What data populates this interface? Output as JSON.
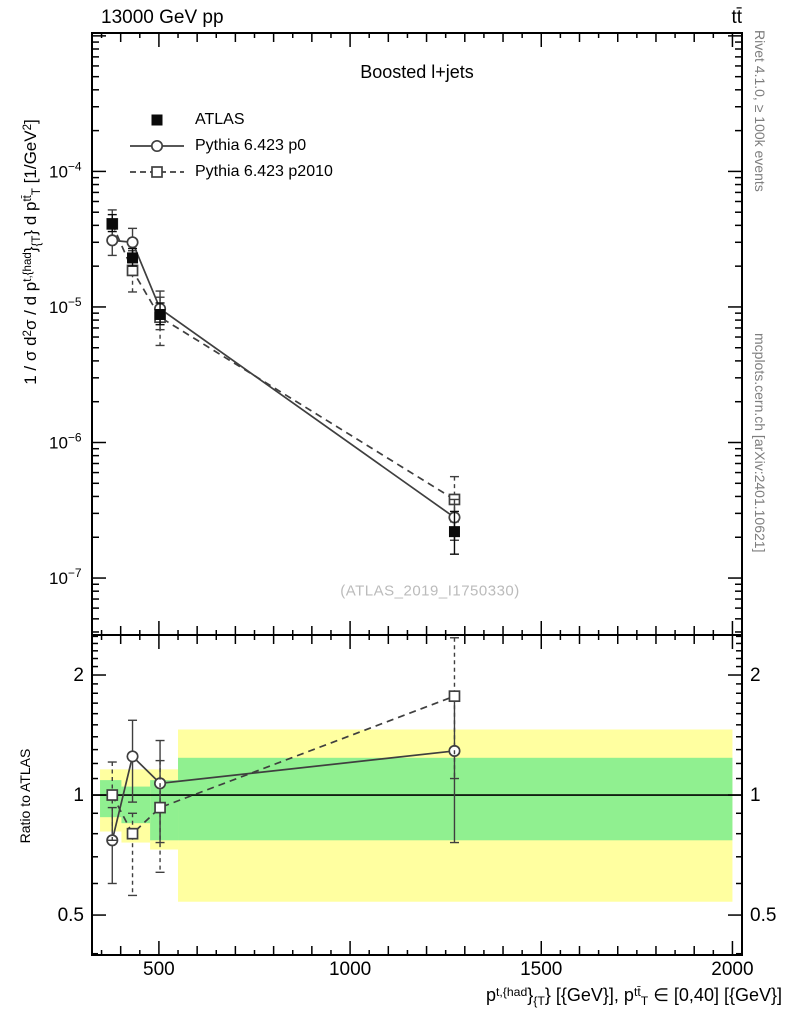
{
  "header": {
    "left": "13000 GeV pp",
    "right": "tt̄"
  },
  "plot": {
    "title": "Boosted l+jets",
    "watermark": "(ATLAS_2019_I1750330)"
  },
  "side_notes": {
    "top": "Rivet 4.1.0, ≥ 100k events",
    "bottom": "mcplots.cern.ch [arXiv:2401.10621]"
  },
  "legend": [
    {
      "label": "ATLAS",
      "marker": "filled-square"
    },
    {
      "label": "Pythia 6.423 p0",
      "marker": "open-circle",
      "line": "solid"
    },
    {
      "label": "Pythia 6.423 p2010",
      "marker": "open-square",
      "line": "dashed"
    }
  ],
  "axes": {
    "ratio_label": "Ratio to ATLAS",
    "x_ticks": [
      {
        "v": 500,
        "label": "500"
      },
      {
        "v": 1000,
        "label": "1000"
      },
      {
        "v": 1500,
        "label": "1500"
      },
      {
        "v": 2000,
        "label": "2000"
      }
    ],
    "y_ticks": [
      {
        "v": 0.0001,
        "base": "10",
        "exp": "−4"
      },
      {
        "v": 1e-05,
        "base": "10",
        "exp": "−5"
      },
      {
        "v": 1e-06,
        "base": "10",
        "exp": "−6"
      },
      {
        "v": 1e-07,
        "base": "10",
        "exp": "−7"
      }
    ],
    "ratio_ticks": [
      {
        "v": 2,
        "label": "2"
      },
      {
        "v": 1,
        "label": "1"
      },
      {
        "v": 0.5,
        "label": "0.5"
      }
    ],
    "y_main_parts": [
      {
        "t": "1 / σ d"
      },
      {
        "t": "2",
        "sup": true
      },
      {
        "t": "σ / d p"
      },
      {
        "t": "t,{had",
        "sup": true
      },
      {
        "t": "}"
      },
      {
        "t": "{T",
        "sub": true
      },
      {
        "t": "} d p"
      },
      {
        "t": "tt̄",
        "sup": true
      },
      {
        "t": "T",
        "sub": true
      },
      {
        "t": " [1/GeV"
      },
      {
        "t": "2",
        "sup": true
      },
      {
        "t": "]"
      }
    ],
    "x_label_parts": [
      {
        "t": "p"
      },
      {
        "t": "t,{had",
        "sup": true
      },
      {
        "t": "}"
      },
      {
        "t": "{T",
        "sub": true
      },
      {
        "t": "} [{GeV}], p"
      },
      {
        "t": "tt̄",
        "sup": true
      },
      {
        "t": "T",
        "sub": true
      },
      {
        "t": " ∈ [0,40] [{GeV}]"
      }
    ]
  },
  "colors": {
    "atlas": "#0a0a0a",
    "mc_line": "#3f3f3f",
    "band_yellow": "#ffffa0",
    "band_green": "#90f090",
    "watermark": "#bbbbbb",
    "side_note": "#7d7d7d",
    "frame": "#000000"
  },
  "chart_data": [
    {
      "type": "line",
      "panel": "main",
      "title": "Boosted l+jets",
      "xlabel": "p_T^{t,had} [GeV], p_T^{ttbar} in [0,40] GeV",
      "ylabel": "1/sigma d2sigma / d p_T^{t,had} d p_T^{ttbar} [1/GeV^2]",
      "xscale": "linear",
      "yscale": "log",
      "xlim": [
        325,
        2025
      ],
      "ylim": [
        3.8e-08,
        0.00105
      ],
      "x": [
        378,
        431,
        503,
        1273
      ],
      "series": [
        {
          "name": "ATLAS",
          "marker": "filled-square",
          "color": "#0a0a0a",
          "values": [
            4.1e-05,
            2.3e-05,
            8.8e-06,
            2.2e-07
          ],
          "err_lo": [
            3.6e-05,
            2e-05,
            7.4e-06,
            1.5e-07
          ],
          "err_hi": [
            4.8e-05,
            2.7e-05,
            1.07e-05,
            3.1e-07
          ]
        },
        {
          "name": "Pythia 6.423 p0",
          "marker": "open-circle",
          "line": "solid",
          "color": "#3f3f3f",
          "values": [
            3.1e-05,
            3e-05,
            9.7e-06,
            2.8e-07
          ],
          "err_lo": [
            2.4e-05,
            2.3e-05,
            6.8e-06,
            1.9e-07
          ],
          "err_hi": [
            3.8e-05,
            3.8e-05,
            1.31e-05,
            3.8e-07
          ]
        },
        {
          "name": "Pythia 6.423 p2010",
          "marker": "open-square",
          "line": "dashed",
          "color": "#3f3f3f",
          "values": [
            4.1e-05,
            1.86e-05,
            8.4e-06,
            3.8e-07
          ],
          "err_lo": [
            3.3e-05,
            1.29e-05,
            5.2e-06,
            2.6e-07
          ],
          "err_hi": [
            5.2e-05,
            2.6e-05,
            1.18e-05,
            5.6e-07
          ]
        }
      ]
    },
    {
      "type": "line",
      "panel": "ratio",
      "ylabel": "Ratio to ATLAS",
      "yscale": "log",
      "ylim": [
        0.397,
        2.52
      ],
      "reference": 1,
      "x": [
        378,
        431,
        503,
        1273
      ],
      "bands": [
        {
          "x0": 346,
          "x1": 402,
          "yellow": [
            0.81,
            1.16
          ],
          "green": [
            0.88,
            1.09
          ]
        },
        {
          "x0": 402,
          "x1": 477,
          "yellow": [
            0.76,
            1.16
          ],
          "green": [
            0.85,
            1.05
          ]
        },
        {
          "x0": 477,
          "x1": 550,
          "yellow": [
            0.73,
            1.16
          ],
          "green": [
            0.77,
            1.09
          ]
        },
        {
          "x0": 550,
          "x1": 2000,
          "yellow": [
            0.54,
            1.46
          ],
          "green": [
            0.77,
            1.24
          ]
        }
      ],
      "series": [
        {
          "name": "Pythia 6.423 p0",
          "marker": "open-circle",
          "line": "solid",
          "color": "#3f3f3f",
          "values": [
            0.77,
            1.25,
            1.07,
            1.29
          ],
          "err_lo": [
            0.6,
            0.96,
            0.76,
            0.76
          ],
          "err_hi": [
            0.93,
            1.54,
            1.37,
            1.81
          ]
        },
        {
          "name": "Pythia 6.423 p2010",
          "marker": "open-square",
          "line": "dashed",
          "color": "#3f3f3f",
          "values": [
            1.0,
            0.8,
            0.93,
            1.77
          ],
          "err_lo": [
            0.77,
            0.56,
            0.64,
            1.1
          ],
          "err_hi": [
            1.21,
            0.9,
            1.22,
            2.48
          ]
        }
      ]
    }
  ]
}
